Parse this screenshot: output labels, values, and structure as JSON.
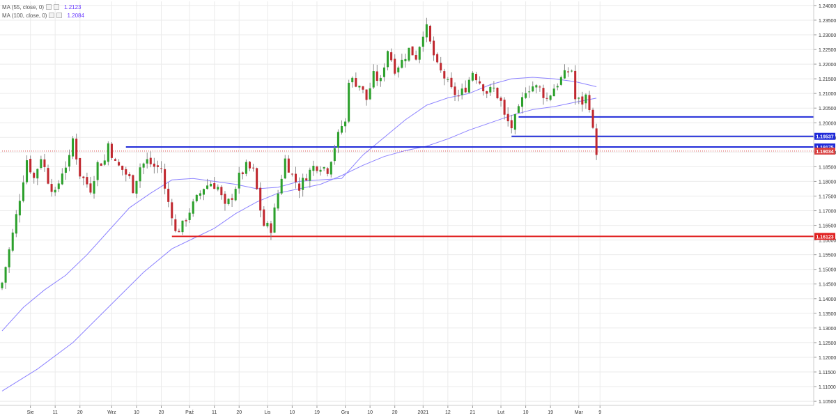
{
  "indicators": [
    {
      "label": "MA (55, close, 0)",
      "value": "1.2123",
      "color": "#8080ff"
    },
    {
      "label": "MA (100, close, 0)",
      "value": "1.2084",
      "color": "#8080ff"
    }
  ],
  "chart_data": {
    "type": "candlestick",
    "y_range": [
      1.1036,
      1.2414
    ],
    "x_range": [
      0,
      230
    ],
    "y_ticks": [
      "1.24000",
      "1.23500",
      "1.23000",
      "1.22500",
      "1.22000",
      "1.21500",
      "1.21000",
      "1.20500",
      "1.20000",
      "1.19500",
      "1.19000",
      "1.18500",
      "1.18000",
      "1.17500",
      "1.17000",
      "1.16500",
      "1.16000",
      "1.15500",
      "1.15000",
      "1.14500",
      "1.14000",
      "1.13500",
      "1.13000",
      "1.12500",
      "1.12000",
      "1.11500",
      "1.11000",
      "1.10500"
    ],
    "x_ticks": [
      {
        "label": "Sie",
        "x": 8
      },
      {
        "label": "11",
        "x": 15
      },
      {
        "label": "20",
        "x": 22
      },
      {
        "label": "Wrz",
        "x": 31
      },
      {
        "label": "10",
        "x": 38
      },
      {
        "label": "20",
        "x": 45
      },
      {
        "label": "Paź",
        "x": 53
      },
      {
        "label": "11",
        "x": 60
      },
      {
        "label": "20",
        "x": 67
      },
      {
        "label": "Lis",
        "x": 75
      },
      {
        "label": "10",
        "x": 82
      },
      {
        "label": "19",
        "x": 89
      },
      {
        "label": "Gru",
        "x": 97
      },
      {
        "label": "10",
        "x": 104
      },
      {
        "label": "20",
        "x": 111
      },
      {
        "label": "2021",
        "x": 119
      },
      {
        "label": "12",
        "x": 126
      },
      {
        "label": "21",
        "x": 133
      },
      {
        "label": "Lut",
        "x": 141
      },
      {
        "label": "10",
        "x": 148
      },
      {
        "label": "19",
        "x": 155
      },
      {
        "label": "Mar",
        "x": 163
      },
      {
        "label": "9",
        "x": 169
      }
    ],
    "anchors": [
      [
        0,
        1.1455
      ],
      [
        3,
        1.162
      ],
      [
        5,
        1.1745
      ],
      [
        7,
        1.1875
      ],
      [
        9,
        1.181
      ],
      [
        11,
        1.1885
      ],
      [
        13,
        1.1805
      ],
      [
        15,
        1.1755
      ],
      [
        17,
        1.1835
      ],
      [
        19,
        1.1875
      ],
      [
        20,
        1.1945
      ],
      [
        22,
        1.1825
      ],
      [
        25,
        1.1775
      ],
      [
        27,
        1.186
      ],
      [
        29,
        1.187
      ],
      [
        30,
        1.193
      ],
      [
        32,
        1.186
      ],
      [
        34,
        1.184
      ],
      [
        36,
        1.181
      ],
      [
        37,
        1.1775
      ],
      [
        39,
        1.185
      ],
      [
        41,
        1.187
      ],
      [
        43,
        1.185
      ],
      [
        45,
        1.1845
      ],
      [
        46,
        1.177
      ],
      [
        48,
        1.169
      ],
      [
        49,
        1.1625
      ],
      [
        51,
        1.165
      ],
      [
        53,
        1.17
      ],
      [
        55,
        1.174
      ],
      [
        57,
        1.178
      ],
      [
        59,
        1.1795
      ],
      [
        61,
        1.178
      ],
      [
        63,
        1.171
      ],
      [
        65,
        1.175
      ],
      [
        67,
        1.1815
      ],
      [
        69,
        1.185
      ],
      [
        71,
        1.1835
      ],
      [
        73,
        1.1705
      ],
      [
        74,
        1.165
      ],
      [
        76,
        1.164
      ],
      [
        78,
        1.176
      ],
      [
        80,
        1.1875
      ],
      [
        82,
        1.182
      ],
      [
        84,
        1.178
      ],
      [
        86,
        1.182
      ],
      [
        88,
        1.185
      ],
      [
        90,
        1.1855
      ],
      [
        92,
        1.184
      ],
      [
        94,
        1.192
      ],
      [
        96,
        1.199
      ],
      [
        97,
        1.2
      ],
      [
        98,
        1.215
      ],
      [
        101,
        1.213
      ],
      [
        103,
        1.208
      ],
      [
        105,
        1.216
      ],
      [
        107,
        1.214
      ],
      [
        108,
        1.22
      ],
      [
        109,
        1.225
      ],
      [
        111,
        1.2185
      ],
      [
        113,
        1.221
      ],
      [
        115,
        1.225
      ],
      [
        117,
        1.2225
      ],
      [
        119,
        1.231
      ],
      [
        120,
        1.232
      ],
      [
        121,
        1.227
      ],
      [
        123,
        1.219
      ],
      [
        125,
        1.2155
      ],
      [
        127,
        1.211
      ],
      [
        129,
        1.209
      ],
      [
        131,
        1.212
      ],
      [
        133,
        1.2175
      ],
      [
        135,
        1.214
      ],
      [
        137,
        1.2105
      ],
      [
        139,
        1.2115
      ],
      [
        141,
        1.207
      ],
      [
        142,
        1.202
      ],
      [
        144,
        1.1985
      ],
      [
        146,
        1.204
      ],
      [
        148,
        1.2115
      ],
      [
        150,
        1.2125
      ],
      [
        152,
        1.2115
      ],
      [
        154,
        1.208
      ],
      [
        156,
        1.212
      ],
      [
        158,
        1.215
      ],
      [
        160,
        1.2175
      ],
      [
        161,
        1.218
      ],
      [
        162,
        1.208
      ],
      [
        164,
        1.207
      ],
      [
        165,
        1.209
      ],
      [
        166,
        1.206
      ],
      [
        167,
        1.197
      ],
      [
        168,
        1.1903
      ]
    ],
    "ma55": [
      [
        0,
        1.129
      ],
      [
        6,
        1.137
      ],
      [
        12,
        1.143
      ],
      [
        18,
        1.148
      ],
      [
        24,
        1.155
      ],
      [
        30,
        1.163
      ],
      [
        36,
        1.171
      ],
      [
        42,
        1.176
      ],
      [
        48,
        1.1805
      ],
      [
        54,
        1.181
      ],
      [
        60,
        1.18
      ],
      [
        66,
        1.179
      ],
      [
        72,
        1.1775
      ],
      [
        78,
        1.178
      ],
      [
        84,
        1.18
      ],
      [
        90,
        1.1805
      ],
      [
        96,
        1.181
      ],
      [
        102,
        1.189
      ],
      [
        108,
        1.195
      ],
      [
        114,
        1.201
      ],
      [
        120,
        1.206
      ],
      [
        126,
        1.2085
      ],
      [
        132,
        1.21
      ],
      [
        138,
        1.213
      ],
      [
        144,
        1.215
      ],
      [
        150,
        1.2155
      ],
      [
        156,
        1.215
      ],
      [
        162,
        1.214
      ],
      [
        168,
        1.2123
      ]
    ],
    "ma100": [
      [
        0,
        1.1085
      ],
      [
        10,
        1.116
      ],
      [
        20,
        1.125
      ],
      [
        30,
        1.137
      ],
      [
        40,
        1.149
      ],
      [
        48,
        1.157
      ],
      [
        54,
        1.1605
      ],
      [
        60,
        1.164
      ],
      [
        66,
        1.169
      ],
      [
        72,
        1.173
      ],
      [
        78,
        1.176
      ],
      [
        84,
        1.1775
      ],
      [
        90,
        1.179
      ],
      [
        96,
        1.182
      ],
      [
        102,
        1.1855
      ],
      [
        108,
        1.1885
      ],
      [
        114,
        1.1905
      ],
      [
        120,
        1.192
      ],
      [
        126,
        1.1945
      ],
      [
        132,
        1.1975
      ],
      [
        138,
        1.2
      ],
      [
        144,
        1.2025
      ],
      [
        150,
        1.2045
      ],
      [
        156,
        1.2055
      ],
      [
        162,
        1.207
      ],
      [
        168,
        1.2084
      ]
    ],
    "levels": [
      {
        "label": "1.19537",
        "y": 1.19537,
        "from_x": 144,
        "color": "#1f2ad8",
        "bold": true
      },
      {
        "label": "1.19175",
        "y": 1.19175,
        "from_x": 35,
        "color": "#1f2ad8",
        "bold": true
      },
      {
        "label": "1.19034",
        "y": 1.19034,
        "from_x": 0,
        "color": "#d84040",
        "bold": false,
        "dotted": true
      },
      {
        "label": "1.16123",
        "y": 1.16123,
        "from_x": 48,
        "color": "#e02020",
        "bold": true
      }
    ],
    "extra_segments": [
      {
        "y": 1.202,
        "from_x": 146,
        "color": "#1f2ad8"
      }
    ],
    "colors": {
      "up": "#2ca02c",
      "down": "#c0282f",
      "wick": "#8a8a8a",
      "grid": "#ebebeb",
      "axis": "#cccccc",
      "ma": "#8c82ff"
    }
  }
}
